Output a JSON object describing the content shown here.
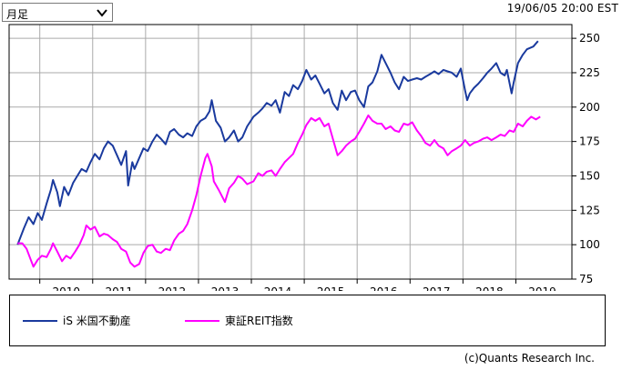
{
  "controls": {
    "period_value": "月足",
    "period_icon": "chevron-down-icon"
  },
  "timestamp": "19/06/05 20:00 EST",
  "credit": "(c)Quants Research Inc.",
  "chart_data": {
    "type": "line",
    "title": "",
    "xlabel": "",
    "ylabel": "",
    "x_ticks": [
      "2010",
      "2011",
      "2012",
      "2013",
      "2014",
      "2015",
      "2016",
      "2017",
      "2018",
      "2019"
    ],
    "y_ticks": [
      75,
      100,
      125,
      150,
      175,
      200,
      225,
      250
    ],
    "ylim": [
      75,
      260
    ],
    "xlim": [
      2009.42,
      2020.06
    ],
    "grid": true,
    "legend_placement": "bottom",
    "series": [
      {
        "name": "iS 米国不動産",
        "color": "#1a3a9e",
        "points": [
          [
            2009.58,
            100
          ],
          [
            2009.7,
            112
          ],
          [
            2009.79,
            120
          ],
          [
            2009.88,
            115
          ],
          [
            2009.96,
            123
          ],
          [
            2010.04,
            118
          ],
          [
            2010.13,
            130
          ],
          [
            2010.21,
            140
          ],
          [
            2010.25,
            147
          ],
          [
            2010.33,
            138
          ],
          [
            2010.38,
            128
          ],
          [
            2010.46,
            142
          ],
          [
            2010.54,
            136
          ],
          [
            2010.63,
            145
          ],
          [
            2010.71,
            150
          ],
          [
            2010.79,
            155
          ],
          [
            2010.88,
            153
          ],
          [
            2010.96,
            160
          ],
          [
            2011.04,
            166
          ],
          [
            2011.13,
            162
          ],
          [
            2011.21,
            170
          ],
          [
            2011.29,
            175
          ],
          [
            2011.38,
            172
          ],
          [
            2011.46,
            165
          ],
          [
            2011.54,
            158
          ],
          [
            2011.63,
            168
          ],
          [
            2011.67,
            143
          ],
          [
            2011.75,
            160
          ],
          [
            2011.79,
            155
          ],
          [
            2011.88,
            163
          ],
          [
            2011.96,
            170
          ],
          [
            2012.04,
            168
          ],
          [
            2012.13,
            175
          ],
          [
            2012.21,
            180
          ],
          [
            2012.29,
            177
          ],
          [
            2012.38,
            173
          ],
          [
            2012.46,
            182
          ],
          [
            2012.54,
            184
          ],
          [
            2012.63,
            180
          ],
          [
            2012.71,
            178
          ],
          [
            2012.79,
            181
          ],
          [
            2012.88,
            179
          ],
          [
            2012.96,
            186
          ],
          [
            2013.04,
            190
          ],
          [
            2013.13,
            192
          ],
          [
            2013.21,
            197
          ],
          [
            2013.25,
            205
          ],
          [
            2013.33,
            190
          ],
          [
            2013.42,
            185
          ],
          [
            2013.5,
            175
          ],
          [
            2013.58,
            178
          ],
          [
            2013.67,
            183
          ],
          [
            2013.75,
            175
          ],
          [
            2013.83,
            178
          ],
          [
            2013.92,
            186
          ],
          [
            2014.04,
            193
          ],
          [
            2014.13,
            196
          ],
          [
            2014.21,
            199
          ],
          [
            2014.29,
            203
          ],
          [
            2014.38,
            201
          ],
          [
            2014.46,
            205
          ],
          [
            2014.54,
            196
          ],
          [
            2014.63,
            211
          ],
          [
            2014.71,
            208
          ],
          [
            2014.79,
            216
          ],
          [
            2014.88,
            213
          ],
          [
            2014.96,
            219
          ],
          [
            2015.04,
            227
          ],
          [
            2015.13,
            220
          ],
          [
            2015.21,
            223
          ],
          [
            2015.29,
            217
          ],
          [
            2015.38,
            210
          ],
          [
            2015.46,
            213
          ],
          [
            2015.54,
            203
          ],
          [
            2015.63,
            198
          ],
          [
            2015.71,
            212
          ],
          [
            2015.79,
            205
          ],
          [
            2015.88,
            211
          ],
          [
            2015.96,
            212
          ],
          [
            2016.04,
            205
          ],
          [
            2016.13,
            200
          ],
          [
            2016.21,
            215
          ],
          [
            2016.29,
            218
          ],
          [
            2016.38,
            226
          ],
          [
            2016.46,
            238
          ],
          [
            2016.54,
            232
          ],
          [
            2016.63,
            225
          ],
          [
            2016.71,
            218
          ],
          [
            2016.79,
            213
          ],
          [
            2016.88,
            222
          ],
          [
            2016.96,
            219
          ],
          [
            2017.04,
            220
          ],
          [
            2017.13,
            221
          ],
          [
            2017.21,
            220
          ],
          [
            2017.29,
            222
          ],
          [
            2017.38,
            224
          ],
          [
            2017.46,
            226
          ],
          [
            2017.54,
            224
          ],
          [
            2017.63,
            227
          ],
          [
            2017.71,
            226
          ],
          [
            2017.79,
            225
          ],
          [
            2017.88,
            222
          ],
          [
            2017.96,
            228
          ],
          [
            2018.04,
            212
          ],
          [
            2018.08,
            205
          ],
          [
            2018.13,
            210
          ],
          [
            2018.21,
            214
          ],
          [
            2018.29,
            217
          ],
          [
            2018.38,
            221
          ],
          [
            2018.46,
            225
          ],
          [
            2018.54,
            228
          ],
          [
            2018.63,
            232
          ],
          [
            2018.71,
            225
          ],
          [
            2018.79,
            223
          ],
          [
            2018.83,
            227
          ],
          [
            2018.92,
            210
          ],
          [
            2018.96,
            218
          ],
          [
            2019.04,
            232
          ],
          [
            2019.13,
            238
          ],
          [
            2019.21,
            242
          ],
          [
            2019.33,
            244
          ],
          [
            2019.42,
            248
          ]
        ]
      },
      {
        "name": "東証REIT指数",
        "color": "#ff00ff",
        "points": [
          [
            2009.58,
            101
          ],
          [
            2009.67,
            101
          ],
          [
            2009.75,
            97
          ],
          [
            2009.83,
            89
          ],
          [
            2009.88,
            84
          ],
          [
            2009.96,
            89
          ],
          [
            2010.04,
            92
          ],
          [
            2010.13,
            91
          ],
          [
            2010.21,
            97
          ],
          [
            2010.25,
            101
          ],
          [
            2010.33,
            95
          ],
          [
            2010.42,
            88
          ],
          [
            2010.5,
            92
          ],
          [
            2010.58,
            90
          ],
          [
            2010.67,
            95
          ],
          [
            2010.75,
            100
          ],
          [
            2010.83,
            107
          ],
          [
            2010.88,
            114
          ],
          [
            2010.96,
            111
          ],
          [
            2011.04,
            113
          ],
          [
            2011.13,
            106
          ],
          [
            2011.21,
            108
          ],
          [
            2011.29,
            107
          ],
          [
            2011.38,
            104
          ],
          [
            2011.46,
            102
          ],
          [
            2011.54,
            97
          ],
          [
            2011.63,
            95
          ],
          [
            2011.71,
            87
          ],
          [
            2011.79,
            84
          ],
          [
            2011.88,
            86
          ],
          [
            2011.96,
            94
          ],
          [
            2012.04,
            99
          ],
          [
            2012.13,
            100
          ],
          [
            2012.21,
            95
          ],
          [
            2012.29,
            94
          ],
          [
            2012.38,
            97
          ],
          [
            2012.46,
            96
          ],
          [
            2012.54,
            103
          ],
          [
            2012.63,
            108
          ],
          [
            2012.71,
            110
          ],
          [
            2012.79,
            115
          ],
          [
            2012.88,
            125
          ],
          [
            2012.96,
            136
          ],
          [
            2013.04,
            150
          ],
          [
            2013.13,
            163
          ],
          [
            2013.17,
            166
          ],
          [
            2013.25,
            157
          ],
          [
            2013.29,
            146
          ],
          [
            2013.38,
            140
          ],
          [
            2013.46,
            134
          ],
          [
            2013.5,
            131
          ],
          [
            2013.58,
            141
          ],
          [
            2013.67,
            145
          ],
          [
            2013.75,
            150
          ],
          [
            2013.83,
            148
          ],
          [
            2013.92,
            144
          ],
          [
            2014.04,
            146
          ],
          [
            2014.13,
            152
          ],
          [
            2014.21,
            150
          ],
          [
            2014.29,
            153
          ],
          [
            2014.38,
            154
          ],
          [
            2014.46,
            150
          ],
          [
            2014.54,
            155
          ],
          [
            2014.63,
            160
          ],
          [
            2014.71,
            163
          ],
          [
            2014.79,
            166
          ],
          [
            2014.88,
            174
          ],
          [
            2014.96,
            180
          ],
          [
            2015.04,
            187
          ],
          [
            2015.13,
            192
          ],
          [
            2015.21,
            190
          ],
          [
            2015.29,
            192
          ],
          [
            2015.38,
            186
          ],
          [
            2015.46,
            188
          ],
          [
            2015.54,
            177
          ],
          [
            2015.63,
            165
          ],
          [
            2015.71,
            168
          ],
          [
            2015.79,
            172
          ],
          [
            2015.88,
            175
          ],
          [
            2015.96,
            177
          ],
          [
            2016.04,
            182
          ],
          [
            2016.13,
            188
          ],
          [
            2016.21,
            194
          ],
          [
            2016.29,
            190
          ],
          [
            2016.38,
            188
          ],
          [
            2016.46,
            188
          ],
          [
            2016.54,
            184
          ],
          [
            2016.63,
            186
          ],
          [
            2016.71,
            183
          ],
          [
            2016.79,
            182
          ],
          [
            2016.88,
            188
          ],
          [
            2016.96,
            187
          ],
          [
            2017.04,
            189
          ],
          [
            2017.13,
            183
          ],
          [
            2017.21,
            179
          ],
          [
            2017.29,
            174
          ],
          [
            2017.38,
            172
          ],
          [
            2017.46,
            176
          ],
          [
            2017.54,
            172
          ],
          [
            2017.63,
            170
          ],
          [
            2017.71,
            165
          ],
          [
            2017.79,
            168
          ],
          [
            2017.88,
            170
          ],
          [
            2017.96,
            172
          ],
          [
            2018.04,
            176
          ],
          [
            2018.13,
            172
          ],
          [
            2018.21,
            174
          ],
          [
            2018.29,
            175
          ],
          [
            2018.38,
            177
          ],
          [
            2018.46,
            178
          ],
          [
            2018.54,
            176
          ],
          [
            2018.63,
            178
          ],
          [
            2018.71,
            180
          ],
          [
            2018.79,
            179
          ],
          [
            2018.88,
            183
          ],
          [
            2018.96,
            182
          ],
          [
            2019.04,
            188
          ],
          [
            2019.13,
            186
          ],
          [
            2019.21,
            190
          ],
          [
            2019.29,
            193
          ],
          [
            2019.38,
            191
          ],
          [
            2019.46,
            193
          ]
        ]
      }
    ]
  }
}
